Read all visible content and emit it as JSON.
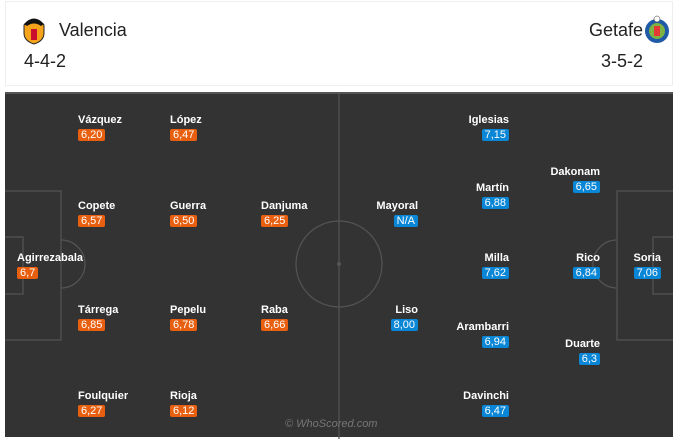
{
  "home": {
    "name": "Valencia",
    "formation": "4-4-2",
    "color": "#e8600f",
    "players": [
      {
        "name": "Vázquez",
        "rating": "6,20"
      },
      {
        "name": "López",
        "rating": "6,47"
      },
      {
        "name": "Copete",
        "rating": "6,57"
      },
      {
        "name": "Guerra",
        "rating": "6,50"
      },
      {
        "name": "Danjuma",
        "rating": "6,25"
      },
      {
        "name": "Agirrezabala",
        "rating": "6,7"
      },
      {
        "name": "Tárrega",
        "rating": "6,85"
      },
      {
        "name": "Pepelu",
        "rating": "6,78"
      },
      {
        "name": "Raba",
        "rating": "6,66"
      },
      {
        "name": "Foulquier",
        "rating": "6,27"
      },
      {
        "name": "Rioja",
        "rating": "6,12"
      }
    ]
  },
  "away": {
    "name": "Getafe",
    "formation": "3-5-2",
    "color": "#0a86d6",
    "players": [
      {
        "name": "Iglesias",
        "rating": "7,15"
      },
      {
        "name": "Dakonam",
        "rating": "6,65"
      },
      {
        "name": "Mayoral",
        "rating": "N/A"
      },
      {
        "name": "Martín",
        "rating": "6,88"
      },
      {
        "name": "Milla",
        "rating": "7,62"
      },
      {
        "name": "Rico",
        "rating": "6,84"
      },
      {
        "name": "Soria",
        "rating": "7,06"
      },
      {
        "name": "Liso",
        "rating": "8,00"
      },
      {
        "name": "Arambarri",
        "rating": "6,94"
      },
      {
        "name": "Duarte",
        "rating": "6,3"
      },
      {
        "name": "Davinchi",
        "rating": "6,47"
      }
    ]
  },
  "watermark": "© WhoScored.com"
}
